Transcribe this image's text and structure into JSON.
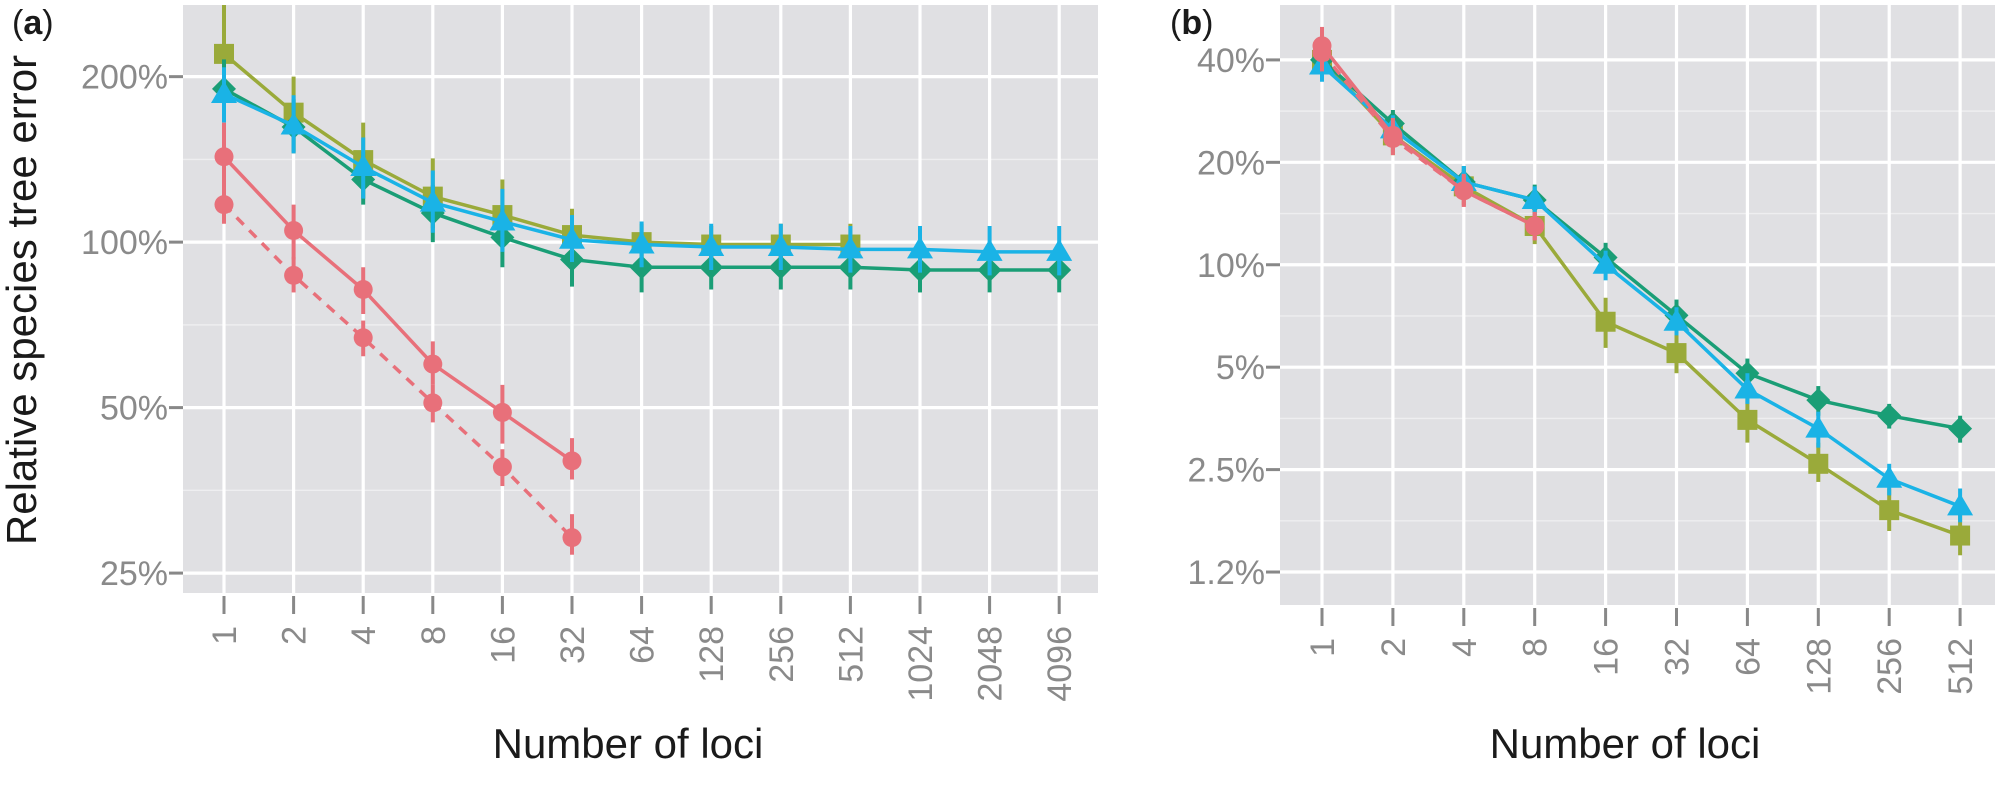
{
  "colors": {
    "coalescent": "#e8707a",
    "square": "#9aaa3a",
    "diamond": "#1a9e76",
    "triangle": "#1ab3e6"
  },
  "chart_data": [
    {
      "type": "line",
      "panel_label_letter": "a",
      "xlabel": "Number of loci",
      "ylabel": "Relative species tree error",
      "y_scale": "log",
      "grid": true,
      "ylim": [
        0.23,
        2.7
      ],
      "x_ticks": [
        "1",
        "2",
        "4",
        "8",
        "16",
        "32",
        "64",
        "128",
        "256",
        "512",
        "1024",
        "2048",
        "4096"
      ],
      "y_ticks": [
        {
          "value": 2.0,
          "label": "200%"
        },
        {
          "value": 1.0,
          "label": "100%"
        },
        {
          "value": 0.5,
          "label": "50%"
        },
        {
          "value": 0.25,
          "label": "25%"
        }
      ],
      "series": [
        {
          "marker": "square",
          "color": "#9aaa3a",
          "dash": false,
          "x": [
            1,
            2,
            4,
            8,
            16,
            32,
            64,
            128,
            256,
            512
          ],
          "y": [
            2.2,
            1.72,
            1.41,
            1.21,
            1.12,
            1.03,
            1.0,
            0.99,
            0.99,
            0.99
          ],
          "err": [
            [
              1.8,
              2.7
            ],
            [
              1.45,
              2.0
            ],
            [
              1.2,
              1.65
            ],
            [
              1.06,
              1.42
            ],
            [
              0.98,
              1.3
            ],
            [
              0.93,
              1.15
            ],
            [
              0.92,
              1.08
            ],
            [
              0.91,
              1.07
            ],
            [
              0.91,
              1.08
            ],
            [
              0.91,
              1.08
            ]
          ]
        },
        {
          "marker": "diamond",
          "color": "#1a9e76",
          "dash": false,
          "x": [
            1,
            2,
            4,
            8,
            16,
            32,
            64,
            128,
            256,
            512,
            1024,
            2048,
            4096
          ],
          "y": [
            1.9,
            1.62,
            1.3,
            1.13,
            1.02,
            0.93,
            0.9,
            0.9,
            0.9,
            0.9,
            0.89,
            0.89,
            0.89
          ],
          "err": [
            [
              1.7,
              2.15
            ],
            [
              1.46,
              1.82
            ],
            [
              1.17,
              1.46
            ],
            [
              1.0,
              1.27
            ],
            [
              0.9,
              1.15
            ],
            [
              0.83,
              1.04
            ],
            [
              0.81,
              0.99
            ],
            [
              0.82,
              0.99
            ],
            [
              0.82,
              0.99
            ],
            [
              0.82,
              0.99
            ],
            [
              0.81,
              0.98
            ],
            [
              0.81,
              0.98
            ],
            [
              0.81,
              0.98
            ]
          ]
        },
        {
          "marker": "triangle",
          "color": "#1ab3e6",
          "dash": false,
          "x": [
            1,
            2,
            4,
            8,
            16,
            32,
            64,
            128,
            256,
            512,
            1024,
            2048,
            4096
          ],
          "y": [
            1.86,
            1.63,
            1.37,
            1.18,
            1.09,
            1.01,
            0.99,
            0.98,
            0.98,
            0.97,
            0.97,
            0.96,
            0.96
          ],
          "err": [
            [
              1.65,
              2.08
            ],
            [
              1.45,
              1.85
            ],
            [
              1.2,
              1.55
            ],
            [
              1.04,
              1.35
            ],
            [
              0.96,
              1.25
            ],
            [
              0.92,
              1.12
            ],
            [
              0.9,
              1.09
            ],
            [
              0.89,
              1.08
            ],
            [
              0.89,
              1.08
            ],
            [
              0.88,
              1.07
            ],
            [
              0.88,
              1.07
            ],
            [
              0.87,
              1.07
            ],
            [
              0.87,
              1.07
            ]
          ]
        },
        {
          "marker": "circle",
          "color": "#e8707a",
          "dash": false,
          "x": [
            1,
            2,
            4,
            8,
            16,
            32
          ],
          "y": [
            1.43,
            1.05,
            0.82,
            0.6,
            0.49,
            0.4
          ],
          "err": [
            [
              1.22,
              1.65
            ],
            [
              0.93,
              1.17
            ],
            [
              0.74,
              0.9
            ],
            [
              0.55,
              0.66
            ],
            [
              0.43,
              0.55
            ],
            [
              0.37,
              0.44
            ]
          ]
        },
        {
          "marker": "circle",
          "color": "#e8707a",
          "dash": true,
          "x": [
            1,
            2,
            4,
            8,
            16,
            32
          ],
          "y": [
            1.17,
            0.87,
            0.67,
            0.51,
            0.39,
            0.29
          ],
          "err": [
            [
              1.08,
              1.26
            ],
            [
              0.81,
              0.94
            ],
            [
              0.62,
              0.72
            ],
            [
              0.47,
              0.55
            ],
            [
              0.36,
              0.42
            ],
            [
              0.27,
              0.32
            ]
          ]
        }
      ]
    },
    {
      "type": "line",
      "panel_label_letter": "b",
      "xlabel": "Number of loci",
      "ylabel": "",
      "y_scale": "log",
      "grid": true,
      "ylim": [
        1.0,
        58.0
      ],
      "x_ticks": [
        "1",
        "2",
        "4",
        "8",
        "16",
        "32",
        "64",
        "128",
        "256",
        "512"
      ],
      "y_ticks": [
        {
          "value": 40,
          "label": "40%"
        },
        {
          "value": 20,
          "label": "20%"
        },
        {
          "value": 10,
          "label": "10%"
        },
        {
          "value": 5,
          "label": "5%"
        },
        {
          "value": 2.5,
          "label": "2.5%"
        },
        {
          "value": 1.25,
          "label": "1.2%"
        }
      ],
      "series": [
        {
          "marker": "square",
          "color": "#9aaa3a",
          "dash": false,
          "x": [
            1,
            2,
            4,
            8,
            16,
            32,
            64,
            128,
            256,
            512
          ],
          "y": [
            40,
            24,
            17,
            13,
            6.8,
            5.5,
            3.5,
            2.6,
            1.9,
            1.6
          ],
          "err": [
            [
              36,
              45
            ],
            [
              21,
              27
            ],
            [
              15,
              19
            ],
            [
              11.5,
              14.5
            ],
            [
              5.7,
              8.0
            ],
            [
              4.8,
              6.3
            ],
            [
              3.0,
              4.1
            ],
            [
              2.3,
              3.0
            ],
            [
              1.65,
              2.2
            ],
            [
              1.4,
              1.85
            ]
          ]
        },
        {
          "marker": "diamond",
          "color": "#1a9e76",
          "dash": false,
          "x": [
            1,
            2,
            4,
            8,
            16,
            32,
            64,
            128,
            256,
            512
          ],
          "y": [
            40,
            26,
            17.5,
            15.5,
            10.5,
            7.1,
            4.8,
            4.0,
            3.6,
            3.3
          ],
          "err": [
            [
              36,
              44
            ],
            [
              24,
              28.5
            ],
            [
              15.7,
              19.5
            ],
            [
              14,
              17.2
            ],
            [
              9.5,
              11.6
            ],
            [
              6.4,
              7.9
            ],
            [
              4.3,
              5.3
            ],
            [
              3.6,
              4.4
            ],
            [
              3.3,
              3.9
            ],
            [
              3.0,
              3.6
            ]
          ]
        },
        {
          "marker": "triangle",
          "color": "#1ab3e6",
          "dash": false,
          "x": [
            1,
            2,
            4,
            8,
            16,
            32,
            64,
            128,
            256,
            512
          ],
          "y": [
            38.5,
            25,
            17.5,
            15.5,
            10,
            6.8,
            4.3,
            3.3,
            2.35,
            1.95
          ],
          "err": [
            [
              34.5,
              43
            ],
            [
              22.5,
              27.5
            ],
            [
              15.7,
              19.5
            ],
            [
              14,
              17
            ],
            [
              9.0,
              11.0
            ],
            [
              6.2,
              7.5
            ],
            [
              3.9,
              4.8
            ],
            [
              2.9,
              3.7
            ],
            [
              2.1,
              2.6
            ],
            [
              1.75,
              2.2
            ]
          ]
        },
        {
          "marker": "circle",
          "color": "#e8707a",
          "dash": false,
          "x": [
            1,
            2,
            4,
            8
          ],
          "y": [
            44,
            24,
            16.5,
            13
          ],
          "err": [
            [
              38,
              50
            ],
            [
              21.5,
              27
            ],
            [
              14.8,
              18.5
            ],
            [
              11.8,
              14.3
            ]
          ]
        },
        {
          "marker": "circle",
          "color": "#e8707a",
          "dash": true,
          "x": [
            1,
            2,
            4,
            8
          ],
          "y": [
            42,
            23.5,
            16.5,
            13
          ],
          "err": [
            [
              37,
              48
            ],
            [
              21,
              26
            ],
            [
              14.8,
              18.3
            ],
            [
              11.8,
              14.2
            ]
          ]
        }
      ]
    }
  ]
}
